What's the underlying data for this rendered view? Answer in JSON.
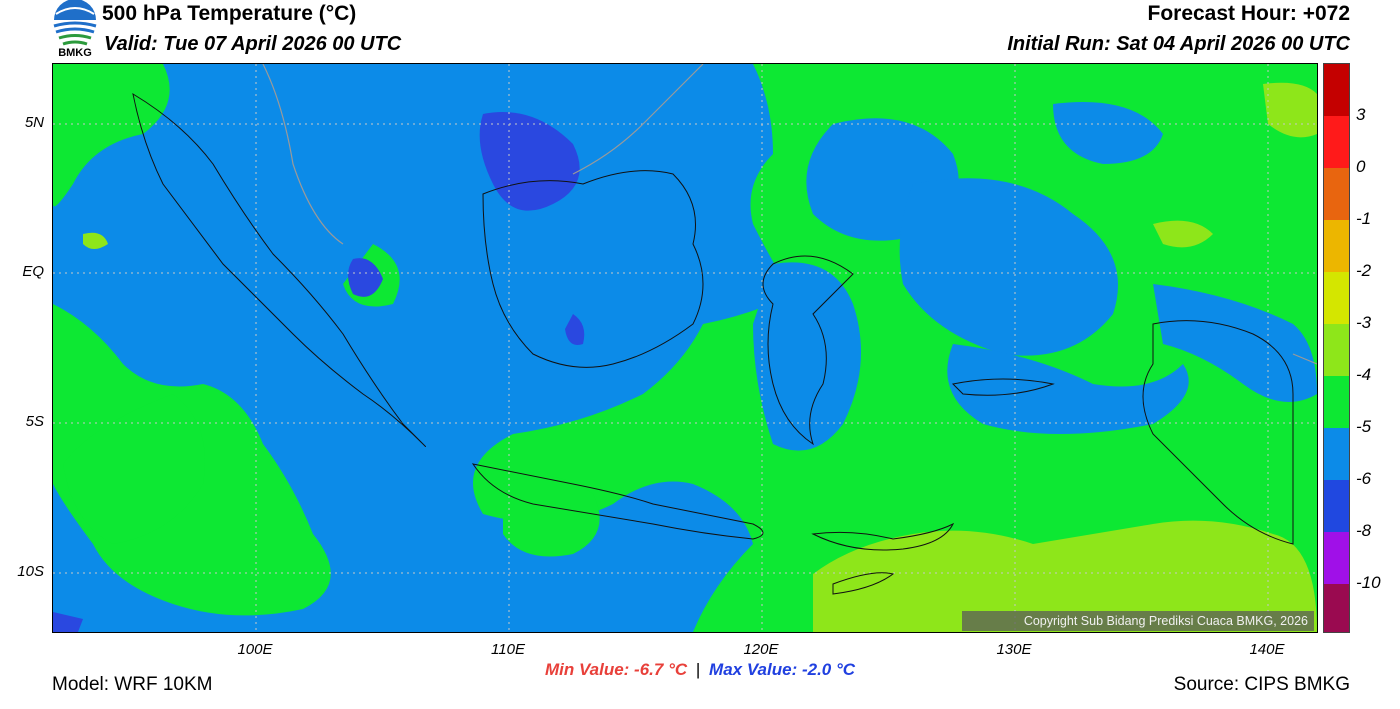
{
  "header": {
    "title": "500 hPa Temperature (°C)",
    "valid": "Valid: Tue 07 April 2026 00 UTC",
    "forecast_hour": "Forecast Hour: +072",
    "initial_run": "Initial Run: Sat 04 April 2026 00 UTC",
    "logo_text": "BMKG"
  },
  "axes": {
    "lat_labels": [
      "5N",
      "EQ",
      "5S",
      "10S"
    ],
    "lon_labels": [
      "100E",
      "110E",
      "120E",
      "130E",
      "140E"
    ]
  },
  "colorbar": {
    "labels": [
      "3",
      "0",
      "-1",
      "-2",
      "-3",
      "-4",
      "-5",
      "-6",
      "-8",
      "-10"
    ],
    "colors": [
      "#c40000",
      "#ff1a1a",
      "#e8650f",
      "#ecb600",
      "#d4e600",
      "#8ee61a",
      "#0de833",
      "#0c8be8",
      "#2048e0",
      "#a010e8",
      "#9a0a50"
    ]
  },
  "stats": {
    "min_label": "Min Value: -6.7 °C",
    "max_label": "Max Value: -2.0 °C",
    "separator": "|"
  },
  "footer": {
    "model": "Model: WRF 10KM",
    "source": "Source: CIPS BMKG",
    "copyright": "Copyright Sub Bidang Prediksi Cuaca BMKG, 2026"
  }
}
